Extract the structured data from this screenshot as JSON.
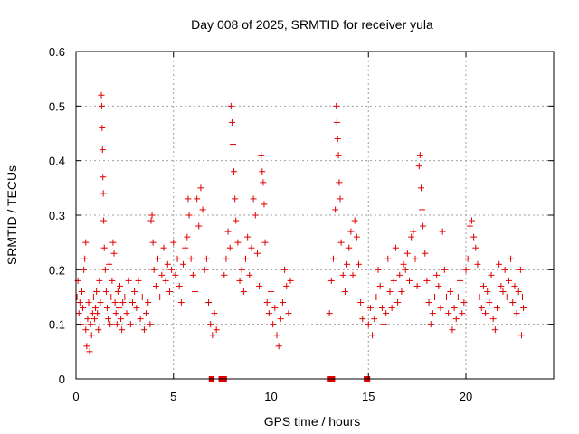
{
  "chart_data": {
    "type": "scatter",
    "title": "Day 008 of 2025, SRMTID for receiver yula",
    "xlabel": "GPS time / hours",
    "ylabel": "SRMTID / TECUs",
    "xlim": [
      0,
      24.5
    ],
    "ylim": [
      0,
      0.6
    ],
    "x_ticks": [
      0,
      5,
      10,
      15,
      20
    ],
    "x_tick_labels": [
      "0",
      "5",
      "10",
      "15",
      "20"
    ],
    "y_ticks": [
      0,
      0.1,
      0.2,
      0.3,
      0.4,
      0.5,
      0.6
    ],
    "y_tick_labels": [
      "0",
      "0.1",
      "0.2",
      "0.3",
      "0.4",
      "0.5",
      "0.6"
    ],
    "grid": true,
    "marker": "plus",
    "color": "#e00000",
    "zero_points": [
      6.95,
      7.45,
      7.6,
      13.05,
      13.15,
      14.9,
      14.95
    ],
    "series": [
      {
        "name": "SRMTID",
        "points": [
          [
            0.05,
            0.15
          ],
          [
            0.1,
            0.18
          ],
          [
            0.15,
            0.12
          ],
          [
            0.2,
            0.14
          ],
          [
            0.25,
            0.1
          ],
          [
            0.3,
            0.16
          ],
          [
            0.35,
            0.13
          ],
          [
            0.4,
            0.2
          ],
          [
            0.45,
            0.22
          ],
          [
            0.5,
            0.09
          ],
          [
            0.5,
            0.25
          ],
          [
            0.55,
            0.06
          ],
          [
            0.6,
            0.11
          ],
          [
            0.65,
            0.14
          ],
          [
            0.7,
            0.05
          ],
          [
            0.75,
            0.1
          ],
          [
            0.8,
            0.08
          ],
          [
            0.85,
            0.12
          ],
          [
            0.9,
            0.15
          ],
          [
            0.95,
            0.11
          ],
          [
            1.0,
            0.13
          ],
          [
            1.05,
            0.16
          ],
          [
            1.1,
            0.12
          ],
          [
            1.15,
            0.09
          ],
          [
            1.2,
            0.18
          ],
          [
            1.25,
            0.14
          ],
          [
            1.3,
            0.52
          ],
          [
            1.32,
            0.5
          ],
          [
            1.34,
            0.46
          ],
          [
            1.36,
            0.42
          ],
          [
            1.38,
            0.37
          ],
          [
            1.4,
            0.34
          ],
          [
            1.42,
            0.29
          ],
          [
            1.45,
            0.24
          ],
          [
            1.5,
            0.2
          ],
          [
            1.55,
            0.16
          ],
          [
            1.6,
            0.13
          ],
          [
            1.65,
            0.11
          ],
          [
            1.7,
            0.21
          ],
          [
            1.75,
            0.1
          ],
          [
            1.8,
            0.15
          ],
          [
            1.85,
            0.18
          ],
          [
            1.9,
            0.25
          ],
          [
            1.95,
            0.23
          ],
          [
            2.0,
            0.14
          ],
          [
            2.05,
            0.12
          ],
          [
            2.1,
            0.1
          ],
          [
            2.15,
            0.16
          ],
          [
            2.2,
            0.13
          ],
          [
            2.25,
            0.17
          ],
          [
            2.3,
            0.11
          ],
          [
            2.35,
            0.09
          ],
          [
            2.4,
            0.14
          ],
          [
            2.5,
            0.15
          ],
          [
            2.6,
            0.12
          ],
          [
            2.7,
            0.18
          ],
          [
            2.8,
            0.1
          ],
          [
            2.9,
            0.14
          ],
          [
            3.0,
            0.16
          ],
          [
            3.1,
            0.13
          ],
          [
            3.2,
            0.18
          ],
          [
            3.3,
            0.11
          ],
          [
            3.4,
            0.15
          ],
          [
            3.5,
            0.09
          ],
          [
            3.6,
            0.12
          ],
          [
            3.7,
            0.14
          ],
          [
            3.8,
            0.1
          ],
          [
            3.85,
            0.29
          ],
          [
            3.9,
            0.3
          ],
          [
            3.95,
            0.25
          ],
          [
            4.0,
            0.2
          ],
          [
            4.1,
            0.17
          ],
          [
            4.2,
            0.22
          ],
          [
            4.3,
            0.15
          ],
          [
            4.4,
            0.19
          ],
          [
            4.5,
            0.24
          ],
          [
            4.6,
            0.18
          ],
          [
            4.7,
            0.21
          ],
          [
            4.8,
            0.16
          ],
          [
            4.9,
            0.2
          ],
          [
            5.0,
            0.25
          ],
          [
            5.1,
            0.19
          ],
          [
            5.2,
            0.22
          ],
          [
            5.3,
            0.17
          ],
          [
            5.4,
            0.14
          ],
          [
            5.5,
            0.21
          ],
          [
            5.6,
            0.24
          ],
          [
            5.7,
            0.26
          ],
          [
            5.75,
            0.33
          ],
          [
            5.8,
            0.3
          ],
          [
            5.9,
            0.22
          ],
          [
            6.0,
            0.19
          ],
          [
            6.1,
            0.16
          ],
          [
            6.2,
            0.33
          ],
          [
            6.3,
            0.28
          ],
          [
            6.4,
            0.35
          ],
          [
            6.5,
            0.31
          ],
          [
            6.6,
            0.2
          ],
          [
            6.7,
            0.22
          ],
          [
            6.8,
            0.14
          ],
          [
            6.9,
            0.1
          ],
          [
            7.0,
            0.08
          ],
          [
            7.1,
            0.12
          ],
          [
            7.2,
            0.09
          ],
          [
            7.6,
            0.19
          ],
          [
            7.7,
            0.22
          ],
          [
            7.8,
            0.27
          ],
          [
            7.9,
            0.24
          ],
          [
            7.95,
            0.5
          ],
          [
            8.0,
            0.47
          ],
          [
            8.05,
            0.43
          ],
          [
            8.1,
            0.38
          ],
          [
            8.15,
            0.33
          ],
          [
            8.2,
            0.29
          ],
          [
            8.3,
            0.25
          ],
          [
            8.4,
            0.18
          ],
          [
            8.5,
            0.2
          ],
          [
            8.6,
            0.16
          ],
          [
            8.7,
            0.22
          ],
          [
            8.8,
            0.26
          ],
          [
            8.9,
            0.19
          ],
          [
            9.0,
            0.24
          ],
          [
            9.1,
            0.33
          ],
          [
            9.2,
            0.3
          ],
          [
            9.3,
            0.23
          ],
          [
            9.4,
            0.17
          ],
          [
            9.5,
            0.41
          ],
          [
            9.55,
            0.38
          ],
          [
            9.6,
            0.36
          ],
          [
            9.65,
            0.32
          ],
          [
            9.7,
            0.25
          ],
          [
            9.8,
            0.14
          ],
          [
            9.9,
            0.12
          ],
          [
            10.0,
            0.16
          ],
          [
            10.1,
            0.1
          ],
          [
            10.2,
            0.13
          ],
          [
            10.3,
            0.08
          ],
          [
            10.4,
            0.06
          ],
          [
            10.5,
            0.11
          ],
          [
            10.6,
            0.14
          ],
          [
            10.7,
            0.2
          ],
          [
            10.8,
            0.17
          ],
          [
            10.9,
            0.12
          ],
          [
            11.0,
            0.18
          ],
          [
            13.0,
            0.12
          ],
          [
            13.1,
            0.18
          ],
          [
            13.2,
            0.22
          ],
          [
            13.3,
            0.31
          ],
          [
            13.35,
            0.5
          ],
          [
            13.38,
            0.47
          ],
          [
            13.42,
            0.44
          ],
          [
            13.46,
            0.41
          ],
          [
            13.5,
            0.36
          ],
          [
            13.55,
            0.33
          ],
          [
            13.6,
            0.25
          ],
          [
            13.7,
            0.19
          ],
          [
            13.8,
            0.16
          ],
          [
            13.9,
            0.21
          ],
          [
            14.0,
            0.24
          ],
          [
            14.1,
            0.27
          ],
          [
            14.2,
            0.19
          ],
          [
            14.3,
            0.29
          ],
          [
            14.4,
            0.26
          ],
          [
            14.5,
            0.21
          ],
          [
            14.6,
            0.14
          ],
          [
            14.7,
            0.11
          ],
          [
            15.0,
            0.1
          ],
          [
            15.1,
            0.13
          ],
          [
            15.2,
            0.08
          ],
          [
            15.3,
            0.11
          ],
          [
            15.4,
            0.15
          ],
          [
            15.5,
            0.2
          ],
          [
            15.6,
            0.17
          ],
          [
            15.7,
            0.13
          ],
          [
            15.8,
            0.1
          ],
          [
            15.9,
            0.12
          ],
          [
            16.0,
            0.22
          ],
          [
            16.1,
            0.16
          ],
          [
            16.2,
            0.13
          ],
          [
            16.3,
            0.18
          ],
          [
            16.4,
            0.24
          ],
          [
            16.5,
            0.14
          ],
          [
            16.6,
            0.19
          ],
          [
            16.7,
            0.16
          ],
          [
            16.8,
            0.21
          ],
          [
            16.9,
            0.2
          ],
          [
            17.0,
            0.23
          ],
          [
            17.1,
            0.18
          ],
          [
            17.2,
            0.26
          ],
          [
            17.3,
            0.27
          ],
          [
            17.4,
            0.22
          ],
          [
            17.5,
            0.17
          ],
          [
            17.6,
            0.39
          ],
          [
            17.65,
            0.41
          ],
          [
            17.7,
            0.35
          ],
          [
            17.75,
            0.31
          ],
          [
            17.8,
            0.28
          ],
          [
            17.9,
            0.23
          ],
          [
            18.0,
            0.18
          ],
          [
            18.1,
            0.14
          ],
          [
            18.2,
            0.1
          ],
          [
            18.3,
            0.12
          ],
          [
            18.4,
            0.15
          ],
          [
            18.5,
            0.19
          ],
          [
            18.6,
            0.17
          ],
          [
            18.7,
            0.13
          ],
          [
            18.8,
            0.27
          ],
          [
            18.9,
            0.2
          ],
          [
            19.0,
            0.15
          ],
          [
            19.1,
            0.12
          ],
          [
            19.2,
            0.16
          ],
          [
            19.3,
            0.09
          ],
          [
            19.4,
            0.13
          ],
          [
            19.5,
            0.11
          ],
          [
            19.6,
            0.15
          ],
          [
            19.7,
            0.18
          ],
          [
            19.8,
            0.12
          ],
          [
            19.9,
            0.14
          ],
          [
            20.0,
            0.2
          ],
          [
            20.1,
            0.22
          ],
          [
            20.2,
            0.28
          ],
          [
            20.3,
            0.29
          ],
          [
            20.4,
            0.26
          ],
          [
            20.5,
            0.24
          ],
          [
            20.6,
            0.21
          ],
          [
            20.7,
            0.15
          ],
          [
            20.8,
            0.13
          ],
          [
            20.9,
            0.17
          ],
          [
            21.0,
            0.12
          ],
          [
            21.1,
            0.16
          ],
          [
            21.2,
            0.14
          ],
          [
            21.3,
            0.19
          ],
          [
            21.4,
            0.11
          ],
          [
            21.5,
            0.09
          ],
          [
            21.6,
            0.13
          ],
          [
            21.7,
            0.21
          ],
          [
            21.8,
            0.17
          ],
          [
            21.9,
            0.16
          ],
          [
            22.0,
            0.2
          ],
          [
            22.1,
            0.15
          ],
          [
            22.2,
            0.18
          ],
          [
            22.3,
            0.22
          ],
          [
            22.4,
            0.14
          ],
          [
            22.5,
            0.17
          ],
          [
            22.6,
            0.12
          ],
          [
            22.7,
            0.16
          ],
          [
            22.8,
            0.2
          ],
          [
            22.85,
            0.08
          ],
          [
            22.9,
            0.15
          ],
          [
            22.95,
            0.13
          ]
        ]
      }
    ]
  }
}
